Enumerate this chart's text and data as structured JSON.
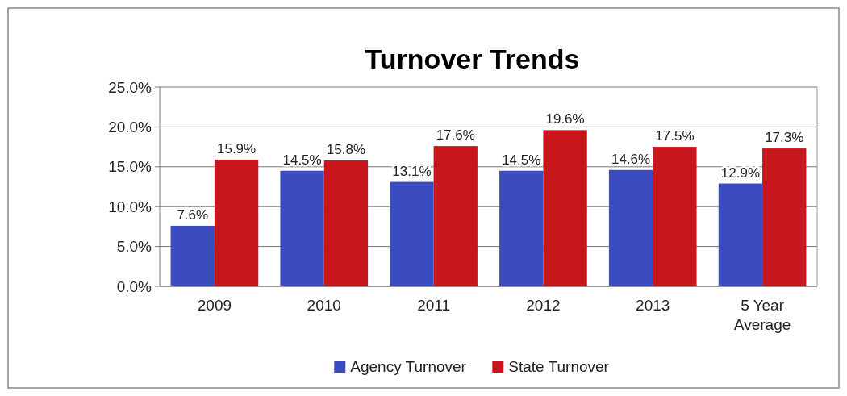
{
  "chart_data": {
    "type": "bar",
    "title": "Turnover Trends",
    "categories": [
      "2009",
      "2010",
      "2011",
      "2012",
      "2013",
      "5 Year Average"
    ],
    "series": [
      {
        "name": "Agency Turnover",
        "color": "#3a4cc0",
        "values": [
          7.6,
          14.5,
          13.1,
          14.5,
          14.6,
          12.9
        ],
        "value_labels": [
          "7.6%",
          "14.5%",
          "13.1%",
          "14.5%",
          "14.6%",
          "12.9%"
        ]
      },
      {
        "name": "State Turnover",
        "color": "#c8161d",
        "values": [
          15.9,
          15.8,
          17.6,
          19.6,
          17.5,
          17.3
        ],
        "value_labels": [
          "15.9%",
          "15.8%",
          "17.6%",
          "19.6%",
          "17.5%",
          "17.3%"
        ]
      }
    ],
    "ylim": [
      0,
      25
    ],
    "yticks": [
      {
        "value": 0,
        "label": "0.0%"
      },
      {
        "value": 5,
        "label": "5.0%"
      },
      {
        "value": 10,
        "label": "10.0%"
      },
      {
        "value": 15,
        "label": "15.0%"
      },
      {
        "value": 20,
        "label": "20.0%"
      },
      {
        "value": 25,
        "label": "25.0%"
      }
    ],
    "grid": "y",
    "legend": "bottom"
  }
}
